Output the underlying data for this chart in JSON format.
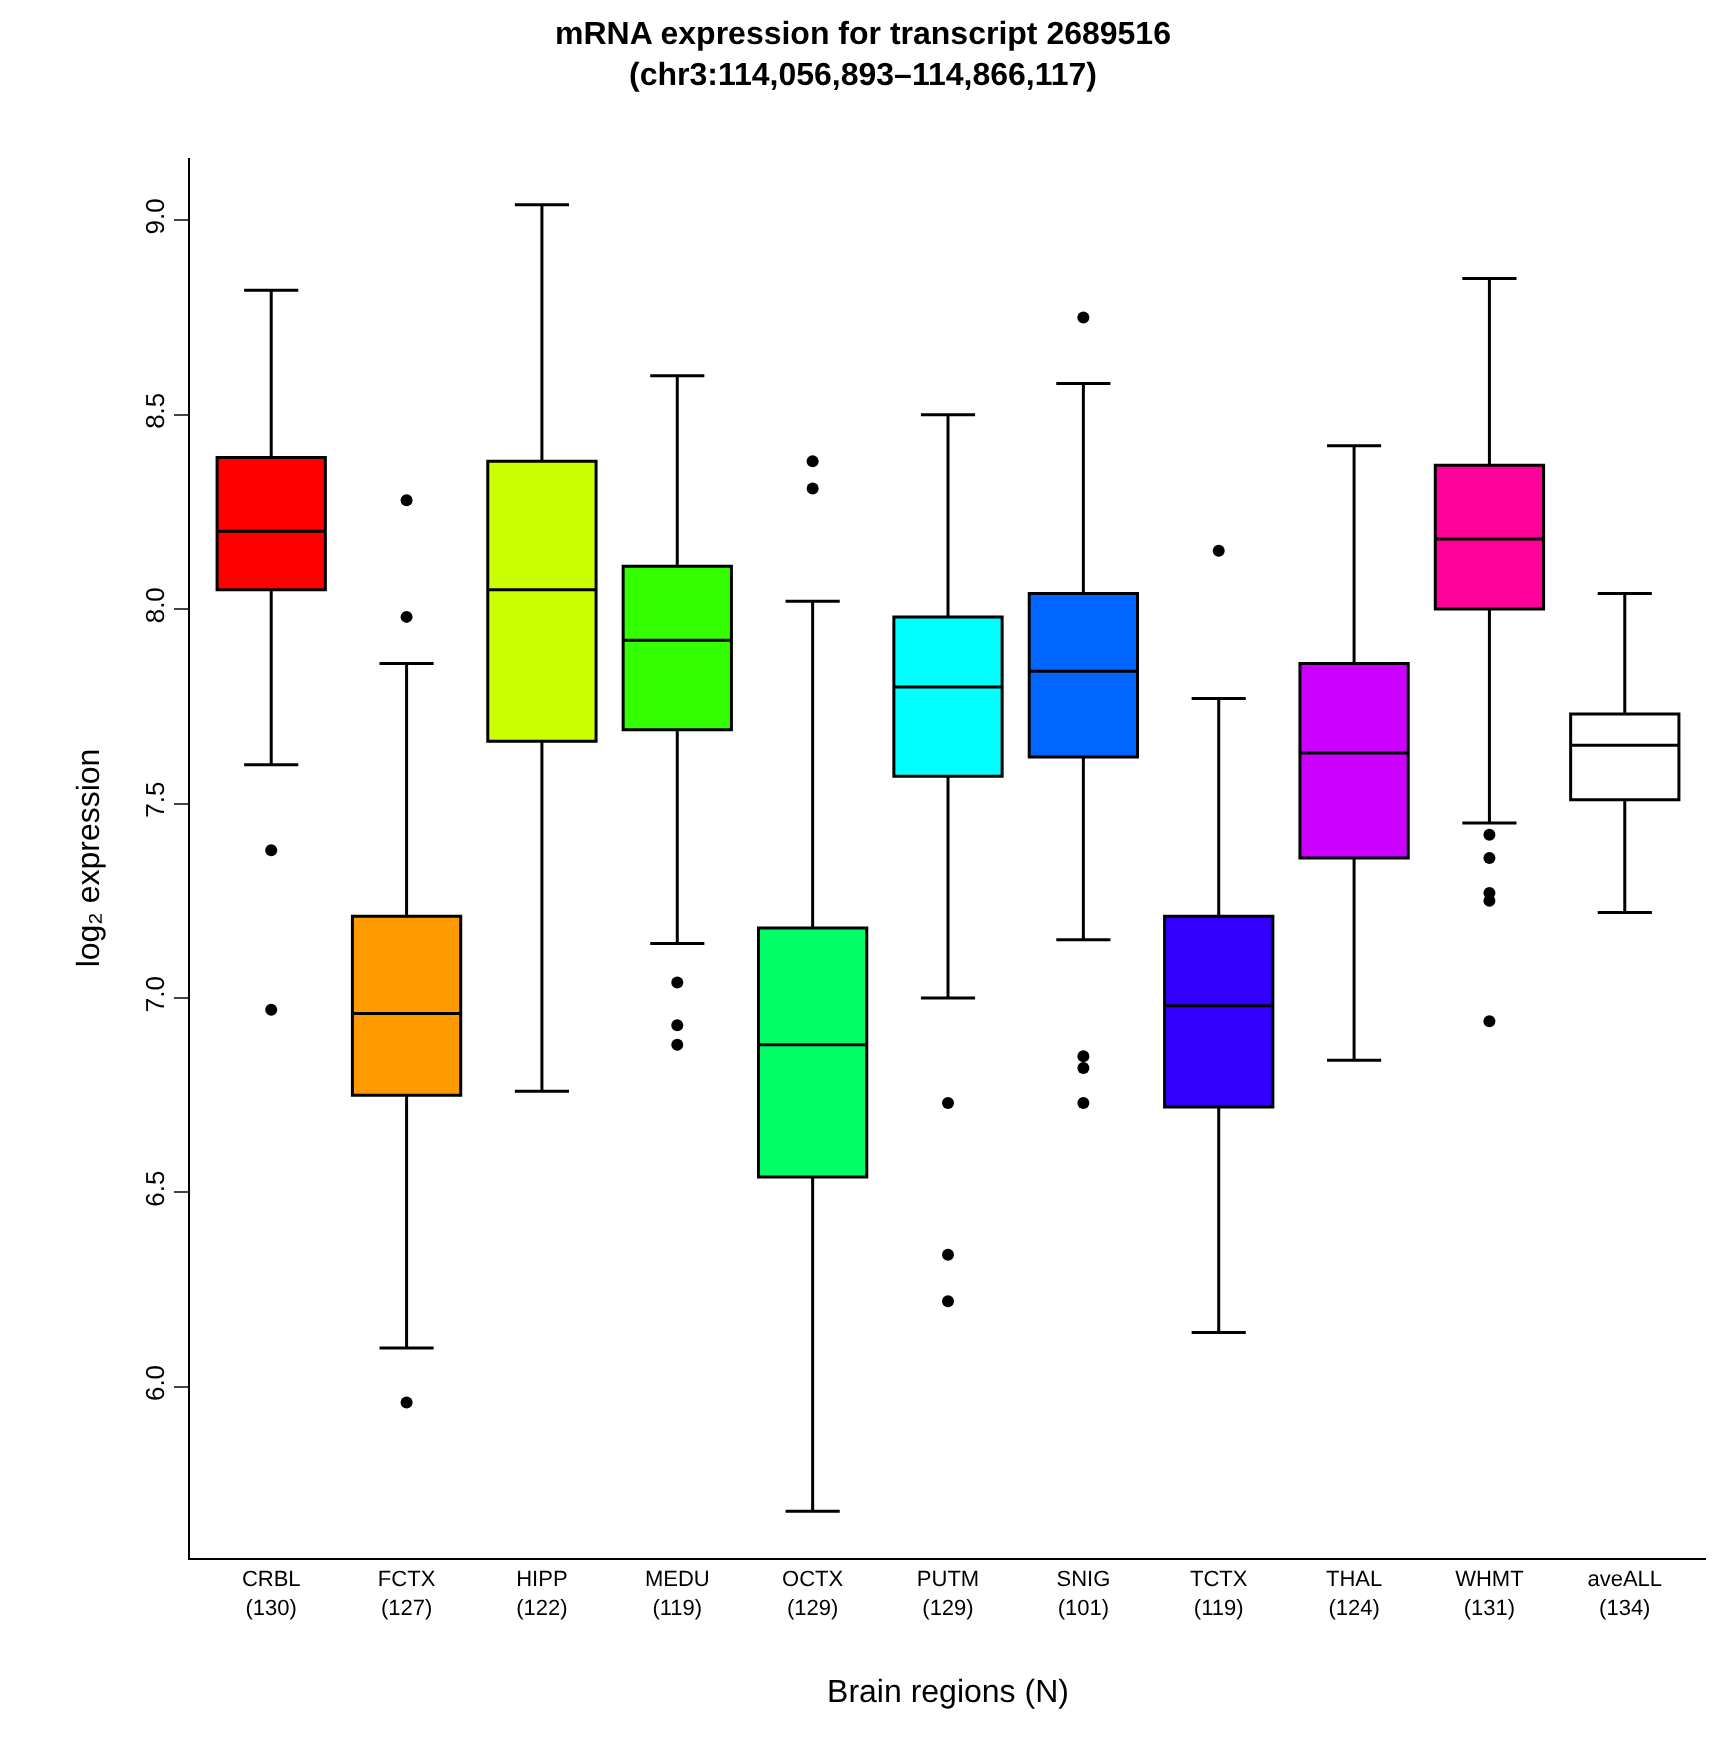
{
  "chart_data": {
    "type": "box",
    "title": "mRNA expression for transcript 2689516\n(chr3:114,056,893–114,866,117)",
    "xlabel": "Brain regions (N)",
    "ylabel": "log₂ expression",
    "categories": [
      "CRBL\n(130)",
      "FCTX\n(127)",
      "HIPP\n(122)",
      "MEDU\n(119)",
      "OCTX\n(129)",
      "PUTM\n(129)",
      "SNIG\n(101)",
      "TCTX\n(119)",
      "THAL\n(124)",
      "WHMT\n(131)",
      "aveALL\n(134)"
    ],
    "colors": [
      "#ff0000",
      "#ff9900",
      "#ccff00",
      "#33ff00",
      "#00ff66",
      "#00ffff",
      "#0066ff",
      "#3300ff",
      "#cc00ff",
      "#ff0099",
      "#ffffff"
    ],
    "boxes": [
      {
        "low": 7.6,
        "q1": 8.05,
        "median": 8.2,
        "q3": 8.39,
        "high": 8.82,
        "outliers": [
          7.38,
          6.97
        ]
      },
      {
        "low": 6.1,
        "q1": 6.75,
        "median": 6.96,
        "q3": 7.21,
        "high": 7.86,
        "outliers": [
          8.28,
          7.98,
          5.96
        ]
      },
      {
        "low": 6.76,
        "q1": 7.66,
        "median": 8.05,
        "q3": 8.38,
        "high": 9.04
      },
      {
        "low": 7.14,
        "q1": 7.69,
        "median": 7.92,
        "q3": 8.11,
        "high": 8.6,
        "outliers": [
          7.04,
          6.93,
          6.88
        ]
      },
      {
        "low": 5.68,
        "q1": 6.54,
        "median": 6.88,
        "q3": 7.18,
        "high": 8.02,
        "outliers": [
          8.38,
          8.31
        ]
      },
      {
        "low": 7.0,
        "q1": 7.57,
        "median": 7.8,
        "q3": 7.98,
        "high": 8.5,
        "outliers": [
          6.73,
          6.34,
          6.22
        ]
      },
      {
        "low": 7.15,
        "q1": 7.62,
        "median": 7.84,
        "q3": 8.04,
        "high": 8.58,
        "outliers": [
          8.75,
          6.85,
          6.82,
          6.73
        ]
      },
      {
        "low": 6.14,
        "q1": 6.72,
        "median": 6.98,
        "q3": 7.21,
        "high": 7.77,
        "outliers": [
          8.15
        ]
      },
      {
        "low": 6.84,
        "q1": 7.36,
        "median": 7.63,
        "q3": 7.86,
        "high": 8.42
      },
      {
        "low": 7.45,
        "q1": 8.0,
        "median": 8.18,
        "q3": 8.37,
        "high": 8.85,
        "outliers": [
          7.42,
          7.36,
          7.27,
          7.25,
          6.94
        ]
      },
      {
        "low": 7.22,
        "q1": 7.51,
        "median": 7.65,
        "q3": 7.73,
        "high": 8.04
      }
    ],
    "ylim": [
      5.56,
      9.16
    ],
    "yticks": [
      {
        "value": 6,
        "label": "6.0"
      },
      {
        "value": 6.5,
        "label": "6.5"
      },
      {
        "value": 7,
        "label": "7.0"
      },
      {
        "value": 7.5,
        "label": "7.5"
      },
      {
        "value": 8,
        "label": "8.0"
      },
      {
        "value": 8.5,
        "label": "8.5"
      },
      {
        "value": 9,
        "label": "9.0"
      }
    ]
  }
}
